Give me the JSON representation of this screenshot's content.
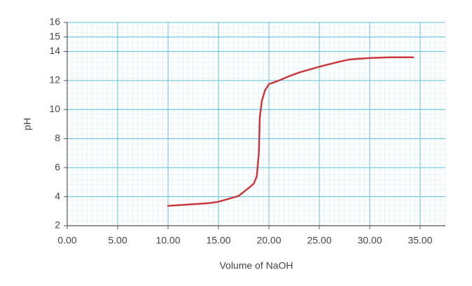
{
  "chart_data": {
    "type": "line",
    "x_label": "Volume of NaOH",
    "y_label": "pH",
    "xlim": [
      0,
      37.5
    ],
    "ylim": [
      2,
      16
    ],
    "xticks": [
      {
        "value": 0,
        "label": "0.00"
      },
      {
        "value": 5,
        "label": "5.00"
      },
      {
        "value": 10,
        "label": "10.00"
      },
      {
        "value": 15,
        "label": "15.00"
      },
      {
        "value": 20,
        "label": "20.00"
      },
      {
        "value": 25,
        "label": "25.00"
      },
      {
        "value": 30,
        "label": "30.00"
      },
      {
        "value": 35,
        "label": "35.00"
      }
    ],
    "yticks": [
      2,
      4,
      6,
      8,
      10,
      12,
      14,
      15,
      16
    ],
    "grid": true,
    "grid_color": "#5bbfdc",
    "series": [
      {
        "color": "#c8383c",
        "x": [
          10,
          14,
          15,
          16,
          17,
          18,
          18.5,
          18.8,
          19.0,
          19.1,
          19.3,
          19.6,
          20,
          21,
          22,
          23,
          25,
          27,
          28,
          30,
          32,
          34.3
        ],
        "values": [
          3.37,
          3.55,
          3.65,
          3.85,
          4.05,
          4.6,
          4.9,
          5.4,
          7,
          9.5,
          10.6,
          11.3,
          11.75,
          12.0,
          12.3,
          12.55,
          12.95,
          13.3,
          13.45,
          13.55,
          13.6,
          13.6
        ]
      }
    ]
  }
}
